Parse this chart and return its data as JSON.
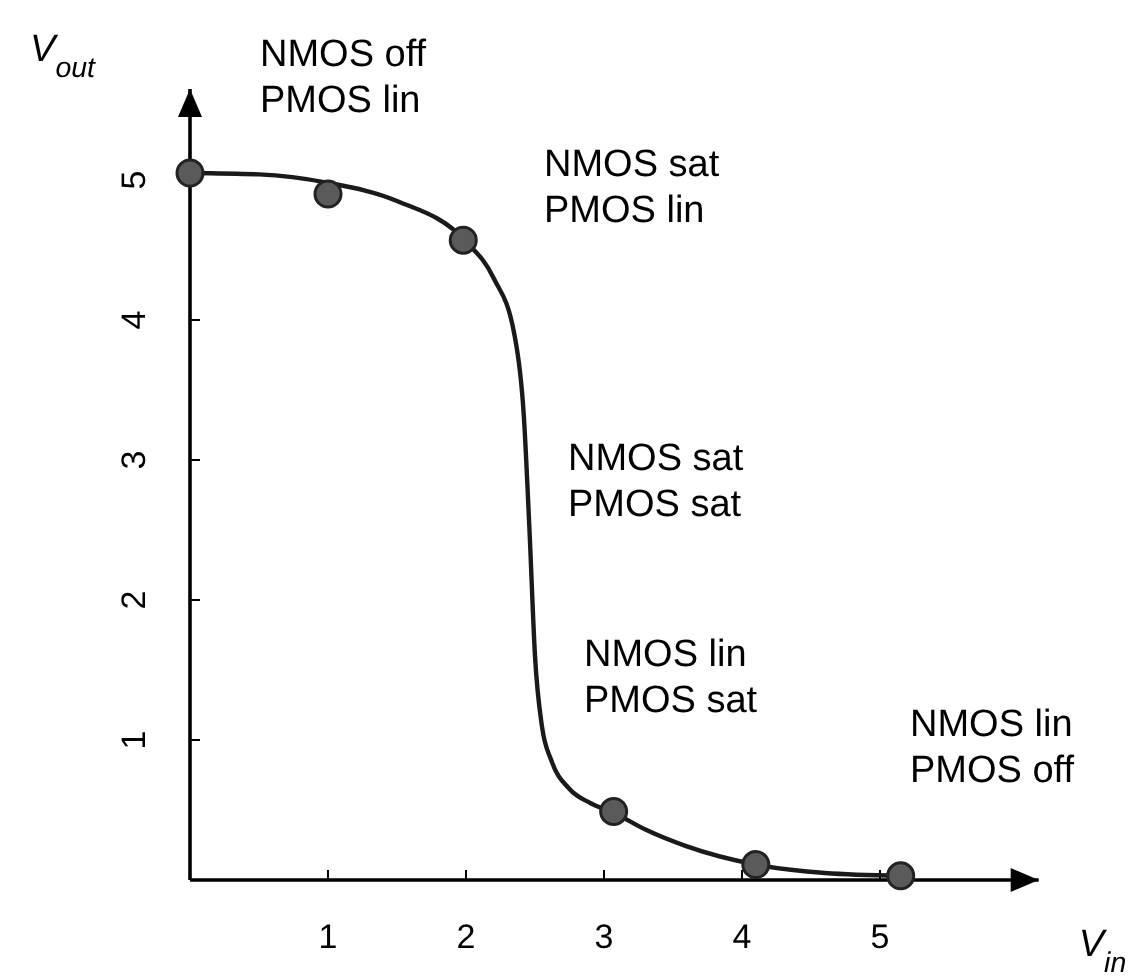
{
  "chart_data": {
    "type": "line",
    "xlabel": "V$_{in}$",
    "ylabel": "V$_{out}$",
    "xlim": [
      0,
      6.15
    ],
    "ylim": [
      0,
      5.65
    ],
    "xticks": [
      1,
      2,
      3,
      4,
      5
    ],
    "yticks": [
      1,
      2,
      3,
      4,
      5
    ],
    "series": [
      {
        "color": "#1a1a1a",
        "marker": "none",
        "x": [
          0,
          0.5,
          1,
          1.5,
          2,
          2.2,
          2.35,
          2.42,
          2.46,
          2.5,
          2.55,
          2.62,
          2.75,
          2.9,
          3.07,
          3.3,
          3.6,
          4.1,
          4.6,
          5.15
        ],
        "values": [
          5.05,
          5.04,
          4.98,
          4.85,
          4.56,
          4.3,
          3.9,
          3.3,
          2.5,
          1.6,
          1.1,
          0.85,
          0.65,
          0.55,
          0.48,
          0.36,
          0.24,
          0.11,
          0.05,
          0.03
        ]
      },
      {
        "type": "scatter",
        "color": "#5a5a5a",
        "marker": "circle",
        "x": [
          0,
          1,
          1.98,
          3.07,
          4.1,
          5.15
        ],
        "values": [
          5.05,
          4.9,
          4.57,
          0.49,
          0.11,
          0.03
        ]
      }
    ],
    "annotations": [
      "NMOS off\nPMOS lin",
      "NMOS sat\nPMOS lin",
      "NMOS sat\nPMOS sat",
      "NMOS lin\nPMOS sat",
      "NMOS lin\nPMOS off"
    ]
  }
}
